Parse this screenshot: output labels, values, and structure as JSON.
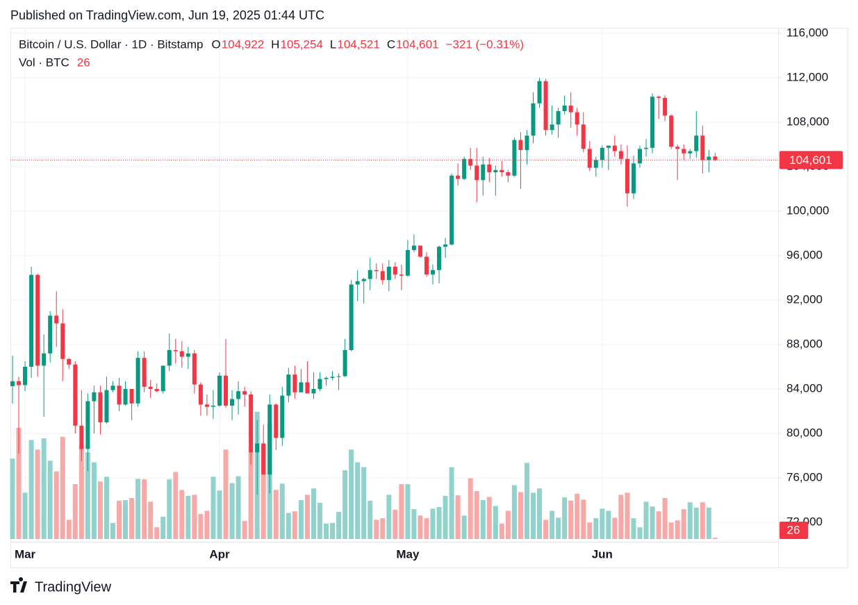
{
  "published": "Published on TradingView.com, Jun 19, 2025 01:44 UTC",
  "brand": "TradingView",
  "chart_data": {
    "type": "candlestick",
    "title": "Bitcoin / U.S. Dollar · 1D · Bitstamp",
    "ohlc_labels": [
      {
        "key": "O",
        "text": "104,922"
      },
      {
        "key": "H",
        "text": "105,254"
      },
      {
        "key": "L",
        "text": "104,521"
      },
      {
        "key": "C",
        "text": "104,601"
      }
    ],
    "change": "−321 (−0.31%)",
    "volume_title": "Vol · BTC",
    "categories": [
      null,
      null,
      "Mar",
      null,
      null,
      null,
      null,
      null,
      null,
      null,
      null,
      null,
      null,
      null,
      null,
      null,
      null,
      null,
      null,
      null,
      null,
      null,
      null,
      null,
      null,
      null,
      null,
      null,
      null,
      null,
      null,
      null,
      null,
      "Apr",
      null,
      null,
      null,
      null,
      null,
      null,
      null,
      null,
      null,
      null,
      null,
      null,
      null,
      null,
      null,
      null,
      null,
      null,
      null,
      null,
      null,
      null,
      null,
      null,
      null,
      null,
      null,
      null,
      null,
      "May",
      null,
      null,
      null,
      null,
      null,
      null,
      null,
      null,
      null,
      null,
      null,
      null,
      null,
      null,
      null,
      null,
      null,
      null,
      null,
      null,
      null,
      null,
      null,
      null,
      null,
      null,
      null,
      null,
      null,
      null,
      "Jun",
      null,
      null,
      null,
      null,
      null,
      null,
      null,
      null,
      null,
      null,
      null,
      null,
      null,
      null,
      null,
      null,
      null,
      null
    ],
    "open": [
      84250,
      84700,
      84350,
      86000,
      94270,
      86100,
      87200,
      90600,
      89900,
      86700,
      86200,
      80700,
      78600,
      82900,
      83700,
      81000,
      83900,
      84300,
      82600,
      84000,
      82700,
      86800,
      84200,
      84000,
      83800,
      86100,
      87500,
      87400,
      86900,
      87200,
      84400,
      82600,
      82400,
      82500,
      85200,
      82500,
      83100,
      83800,
      83500,
      78300,
      79100,
      76300,
      82600,
      79600,
      83400,
      85300,
      83700,
      84600,
      83600,
      84000,
      84900,
      85000,
      85100,
      85150,
      87500,
      93400,
      93700,
      93900,
      94700,
      94600,
      93800,
      95000,
      94300,
      94200,
      96500,
      96900,
      95900,
      94300,
      94700,
      96800,
      97000,
      103200,
      102900,
      104700,
      104100,
      102800,
      104200,
      103500,
      103700,
      103500,
      103200,
      106400,
      105500,
      106800,
      109700,
      111700,
      107300,
      107800,
      109000,
      109500,
      108900,
      107800,
      105600,
      103900,
      104600,
      105700,
      105900,
      105400,
      104700,
      101600,
      104300,
      105600,
      105700,
      110300,
      110200,
      108600,
      105800,
      105600,
      105200,
      105400,
      106800,
      104600,
      104922
    ],
    "high": [
      87000,
      85100,
      86500,
      95000,
      94400,
      88900,
      91000,
      92800,
      91200,
      86800,
      86500,
      83900,
      83600,
      84300,
      84300,
      85100,
      84700,
      85000,
      84700,
      84000,
      87400,
      87400,
      84800,
      84500,
      86100,
      89000,
      88500,
      88300,
      87800,
      87500,
      84600,
      83500,
      83900,
      85500,
      88500,
      83900,
      84700,
      84200,
      83800,
      81200,
      80800,
      83500,
      82700,
      84200,
      85900,
      86100,
      85800,
      86500,
      85500,
      85500,
      85100,
      85600,
      85400,
      88500,
      93800,
      94700,
      94000,
      95800,
      95300,
      95300,
      95600,
      95400,
      95200,
      97400,
      97900,
      96900,
      96300,
      95200,
      96900,
      97600,
      103400,
      104300,
      104900,
      105700,
      105700,
      104900,
      104800,
      104100,
      104500,
      103700,
      106600,
      107100,
      107300,
      110700,
      112000,
      111900,
      109500,
      109300,
      110400,
      110700,
      109300,
      108900,
      106300,
      104900,
      105900,
      105900,
      106800,
      106000,
      105900,
      105000,
      105900,
      106500,
      110600,
      110400,
      110400,
      108700,
      106000,
      106000,
      105600,
      109000,
      107700,
      105500,
      105254
    ],
    "low": [
      82700,
      78200,
      83800,
      85000,
      85100,
      81500,
      86400,
      87800,
      84700,
      85800,
      80000,
      77500,
      76600,
      80000,
      79900,
      80900,
      83700,
      82000,
      82500,
      81200,
      82400,
      83700,
      83200,
      83700,
      83600,
      85600,
      86300,
      85900,
      85800,
      83600,
      81600,
      81600,
      81300,
      82400,
      82300,
      81200,
      81700,
      82400,
      77200,
      74500,
      76300,
      74600,
      78500,
      78900,
      82800,
      83100,
      83700,
      83600,
      83100,
      83800,
      84300,
      84800,
      83900,
      85100,
      87400,
      91900,
      91700,
      92900,
      93900,
      93400,
      92800,
      93900,
      92900,
      94100,
      96300,
      95800,
      94100,
      93400,
      93500,
      95800,
      96900,
      102300,
      102800,
      103700,
      100800,
      101400,
      102600,
      101400,
      103100,
      102600,
      103100,
      102000,
      104200,
      106100,
      109300,
      106800,
      106900,
      106600,
      108700,
      107500,
      106800,
      105300,
      103600,
      103100,
      103900,
      103700,
      104900,
      104200,
      100400,
      101100,
      103900,
      104900,
      105200,
      108300,
      108100,
      105600,
      102800,
      104600,
      104700,
      104800,
      103400,
      103500,
      104521
    ],
    "close": [
      84700,
      84350,
      86000,
      94270,
      86100,
      87200,
      90600,
      89900,
      86700,
      86200,
      80700,
      78600,
      82900,
      83700,
      81000,
      83900,
      84300,
      82600,
      84000,
      82700,
      86800,
      84200,
      84000,
      83800,
      86100,
      87500,
      87400,
      86900,
      87200,
      84400,
      82600,
      82400,
      82500,
      85200,
      82500,
      83100,
      83800,
      83500,
      78300,
      79100,
      76300,
      82600,
      79600,
      83400,
      85300,
      83700,
      84600,
      83600,
      84000,
      84900,
      85000,
      85100,
      85150,
      87500,
      93400,
      93700,
      93900,
      94700,
      94600,
      93800,
      95000,
      94300,
      94200,
      96500,
      96900,
      95900,
      94300,
      94700,
      96800,
      97000,
      103200,
      102900,
      104700,
      104100,
      102800,
      104200,
      103500,
      103700,
      103500,
      103200,
      106400,
      105500,
      106800,
      109700,
      111700,
      107300,
      107800,
      109000,
      109500,
      108900,
      107800,
      105600,
      103900,
      104600,
      105700,
      105900,
      105400,
      104700,
      101600,
      104300,
      105600,
      105700,
      110300,
      110200,
      108600,
      105800,
      105600,
      105200,
      105400,
      106800,
      104600,
      104900,
      104601
    ],
    "volume": [
      1510,
      2090,
      870,
      1860,
      1680,
      1890,
      1470,
      1270,
      1920,
      360,
      1030,
      1760,
      1630,
      1440,
      1080,
      1170,
      300,
      720,
      730,
      770,
      1130,
      1120,
      700,
      220,
      420,
      1120,
      1260,
      920,
      810,
      830,
      470,
      530,
      1170,
      910,
      1680,
      1050,
      1180,
      340,
      1640,
      2390,
      1770,
      2160,
      920,
      1040,
      490,
      520,
      730,
      830,
      950,
      680,
      290,
      300,
      510,
      1290,
      1680,
      1440,
      1350,
      720,
      360,
      390,
      830,
      550,
      1030,
      1030,
      560,
      440,
      390,
      570,
      600,
      810,
      1350,
      820,
      440,
      1140,
      900,
      730,
      790,
      620,
      290,
      530,
      1010,
      880,
      1430,
      870,
      950,
      360,
      530,
      400,
      780,
      720,
      850,
      740,
      310,
      390,
      570,
      530,
      400,
      830,
      870,
      390,
      220,
      700,
      610,
      520,
      770,
      310,
      350,
      560,
      690,
      590,
      690,
      590,
      26
    ],
    "up_color": "#089981",
    "down_color": "#f23645",
    "volume_up_color": "#92d2cc",
    "volume_down_color": "#f7a9a7",
    "ylim": [
      70250,
      116500
    ],
    "yticks": [
      {
        "value": 72000,
        "label": "72,000"
      },
      {
        "value": 76000,
        "label": "76,000"
      },
      {
        "value": 80000,
        "label": "80,000"
      },
      {
        "value": 84000,
        "label": "84,000"
      },
      {
        "value": 88000,
        "label": "88,000"
      },
      {
        "value": 92000,
        "label": "92,000"
      },
      {
        "value": 96000,
        "label": "96,000"
      },
      {
        "value": 100000,
        "label": "100,000"
      },
      {
        "value": 104000,
        "label": "104,000"
      },
      {
        "value": 108000,
        "label": "108,000"
      },
      {
        "value": 112000,
        "label": "112,000"
      },
      {
        "value": 116000,
        "label": "116,000"
      }
    ],
    "volume_lim": [
      0,
      3000
    ],
    "grid": true
  }
}
